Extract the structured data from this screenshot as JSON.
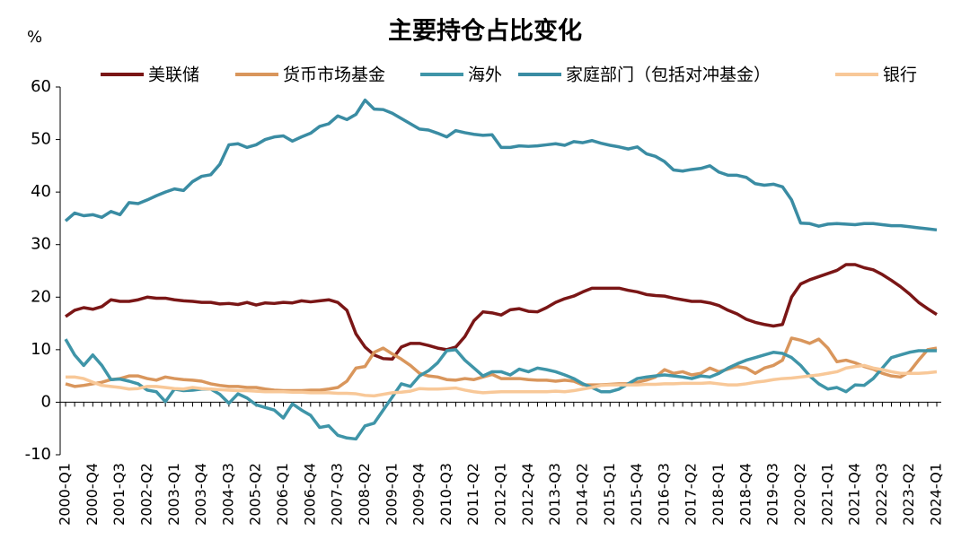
{
  "chart_data": {
    "type": "line",
    "title": "主要持仓占比变化",
    "y_label": "%",
    "categories": [
      "2000-Q1",
      null,
      null,
      "2000-Q4",
      null,
      null,
      "2001-Q3",
      null,
      null,
      "2002-Q2",
      null,
      null,
      "2003-Q1",
      null,
      null,
      "2003-Q4",
      null,
      null,
      "2004-Q3",
      null,
      null,
      "2005-Q2",
      null,
      null,
      "2006-Q1",
      null,
      null,
      "2006-Q4",
      null,
      null,
      "2007-Q3",
      null,
      null,
      "2008-Q2",
      null,
      null,
      "2009-Q1",
      null,
      null,
      "2009-Q4",
      null,
      null,
      "2010-Q3",
      null,
      null,
      "2011-Q2",
      null,
      null,
      "2012-Q1",
      null,
      null,
      "2012-Q4",
      null,
      null,
      "2013-Q3",
      null,
      null,
      "2014-Q2",
      null,
      null,
      "2015-Q1",
      null,
      null,
      "2015-Q4",
      null,
      null,
      "2016-Q3",
      null,
      null,
      "2017-Q2",
      null,
      null,
      "2018-Q1",
      null,
      null,
      "2018-Q4",
      null,
      null,
      "2019-Q3",
      null,
      null,
      "2020-Q2",
      null,
      null,
      "2021-Q1",
      null,
      null,
      "2021-Q4",
      null,
      null,
      "2022-Q3",
      null,
      null,
      "2023-Q2",
      null,
      null,
      "2024-Q1"
    ],
    "series": [
      {
        "name": "美联储",
        "color": "#7a1616",
        "values": [
          16.3,
          17.5,
          18,
          17.7,
          18.2,
          19.5,
          19.2,
          19.2,
          19.5,
          20,
          19.8,
          19.8,
          19.5,
          19.3,
          19.2,
          19,
          19,
          18.7,
          18.8,
          18.6,
          19,
          18.5,
          18.9,
          18.8,
          19,
          18.9,
          19.3,
          19.1,
          19.3,
          19.5,
          19,
          17.5,
          13,
          10.5,
          9,
          8.3,
          8.2,
          10.5,
          11.2,
          11.2,
          10.8,
          10.3,
          10,
          10.5,
          12.5,
          15.5,
          17.2,
          17,
          16.6,
          17.6,
          17.8,
          17.3,
          17.2,
          18,
          19,
          19.7,
          20.2,
          21,
          21.7,
          21.7,
          21.7,
          21.7,
          21.3,
          21,
          20.5,
          20.3,
          20.2,
          19.8,
          19.5,
          19.2,
          19.2,
          18.9,
          18.4,
          17.5,
          16.8,
          15.8,
          15.2,
          14.8,
          14.5,
          14.8,
          20,
          22.5,
          23.3,
          23.9,
          24.5,
          25.1,
          26.2,
          26.2,
          25.6,
          25.2,
          24.3,
          23.2,
          22,
          20.6,
          19,
          17.8,
          16.7
        ]
      },
      {
        "name": "货币市场基金",
        "color": "#d9965c",
        "values": [
          3.5,
          3,
          3.2,
          3.5,
          3.8,
          4.3,
          4.5,
          5,
          5,
          4.5,
          4.2,
          4.8,
          4.5,
          4.3,
          4.2,
          4,
          3.5,
          3.2,
          3,
          3,
          2.8,
          2.8,
          2.5,
          2.3,
          2.2,
          2.2,
          2.2,
          2.3,
          2.3,
          2.5,
          2.8,
          4,
          6.5,
          6.8,
          9.5,
          10.3,
          9.2,
          8.2,
          7,
          5.5,
          5,
          4.8,
          4.3,
          4.2,
          4.5,
          4.3,
          4.8,
          5.3,
          4.5,
          4.5,
          4.5,
          4.3,
          4.2,
          4.2,
          4,
          4.2,
          4,
          3.3,
          3.3,
          3.3,
          3.4,
          3.5,
          3.5,
          3.8,
          4.2,
          4.8,
          6.2,
          5.5,
          5.8,
          5.2,
          5.5,
          6.5,
          5.8,
          6.3,
          6.8,
          6.5,
          5.5,
          6.5,
          7,
          8,
          12.2,
          11.8,
          11.2,
          12,
          10.3,
          7.7,
          8,
          7.5,
          6.8,
          6.3,
          5.5,
          5,
          4.8,
          5.8,
          8,
          10,
          10.3
        ]
      },
      {
        "name": "海外",
        "color": "#3f95a8",
        "values": [
          12,
          9,
          7,
          9,
          7,
          4.3,
          4.4,
          4,
          3.5,
          2.3,
          2,
          0.1,
          2.5,
          2.2,
          2.3,
          2.5,
          2.5,
          1.5,
          -0.2,
          1.6,
          0.8,
          -0.5,
          -1,
          -1.5,
          -3,
          -0.3,
          -1.5,
          -2.5,
          -4.8,
          -4.5,
          -6.3,
          -6.8,
          -7,
          -4.5,
          -4,
          -1.5,
          1,
          3.5,
          3,
          5,
          6,
          7.5,
          9.8,
          10,
          8,
          6.5,
          5,
          5.8,
          5.8,
          5.2,
          6.3,
          5.8,
          6.5,
          6.2,
          5.8,
          5.2,
          4.5,
          3.5,
          2.8,
          2,
          2,
          2.5,
          3.5,
          4.5,
          4.8,
          5,
          5.2,
          5,
          4.8,
          4.5,
          5,
          4.8,
          5.5,
          6.5,
          7.3,
          8,
          8.5,
          9,
          9.5,
          9.3,
          8.5,
          7,
          5,
          3.5,
          2.5,
          2.8,
          2,
          3.3,
          3.2,
          4.5,
          6.5,
          8.5,
          9,
          9.5,
          9.8,
          9.8,
          9.8
        ]
      },
      {
        "name": "家庭部门（包括对冲基金）",
        "color": "#3a8ca3",
        "values": [
          34.5,
          36,
          35.5,
          35.7,
          35.2,
          36.3,
          35.7,
          38,
          37.8,
          38.5,
          39.3,
          40,
          40.6,
          40.3,
          42,
          43,
          43.3,
          45.3,
          49,
          49.2,
          48.5,
          49,
          50,
          50.5,
          50.7,
          49.7,
          50.5,
          51.2,
          52.5,
          53,
          54.5,
          53.8,
          54.8,
          57.5,
          55.8,
          55.7,
          55,
          54,
          53,
          52,
          51.8,
          51.2,
          50.5,
          51.7,
          51.3,
          51,
          50.8,
          50.9,
          48.5,
          48.5,
          48.8,
          48.7,
          48.8,
          49,
          49.2,
          48.9,
          49.6,
          49.4,
          49.8,
          49.3,
          48.9,
          48.6,
          48.2,
          48.6,
          47.3,
          46.8,
          45.8,
          44.2,
          44,
          44.3,
          44.5,
          45,
          43.8,
          43.2,
          43.2,
          42.8,
          41.6,
          41.3,
          41.5,
          41,
          38.5,
          34.1,
          34,
          33.5,
          33.9,
          34,
          33.9,
          33.8,
          34,
          34,
          33.8,
          33.6,
          33.6,
          33.4,
          33.2,
          33,
          32.8
        ]
      },
      {
        "name": "银行",
        "color": "#f8c898",
        "values": [
          4.8,
          4.8,
          4.5,
          3.8,
          3.2,
          3,
          2.8,
          2.5,
          2.6,
          3,
          3,
          2.8,
          2.6,
          2.5,
          2.8,
          2.6,
          2.5,
          2.4,
          2.3,
          2.2,
          2.2,
          2.1,
          2,
          2,
          2,
          1.9,
          1.9,
          1.8,
          1.8,
          1.8,
          1.7,
          1.7,
          1.6,
          1.3,
          1.2,
          1.5,
          1.8,
          1.9,
          2.1,
          2.6,
          2.5,
          2.5,
          2.6,
          2.7,
          2.3,
          2,
          1.8,
          1.9,
          2,
          2,
          2,
          2,
          2,
          2,
          2.1,
          2,
          2.2,
          2.5,
          2.8,
          3.2,
          3.3,
          3.3,
          3.3,
          3.3,
          3.4,
          3.4,
          3.5,
          3.5,
          3.6,
          3.6,
          3.6,
          3.7,
          3.5,
          3.3,
          3.3,
          3.5,
          3.8,
          4,
          4.3,
          4.5,
          4.6,
          4.8,
          5,
          5.2,
          5.5,
          5.8,
          6.5,
          6.8,
          7,
          6.5,
          6.2,
          5.8,
          5.5,
          5.5,
          5.5,
          5.6,
          5.8
        ]
      }
    ],
    "ylim": [
      -10,
      60
    ],
    "yticks": [
      -10,
      0,
      10,
      20,
      30,
      40,
      50,
      60
    ]
  }
}
